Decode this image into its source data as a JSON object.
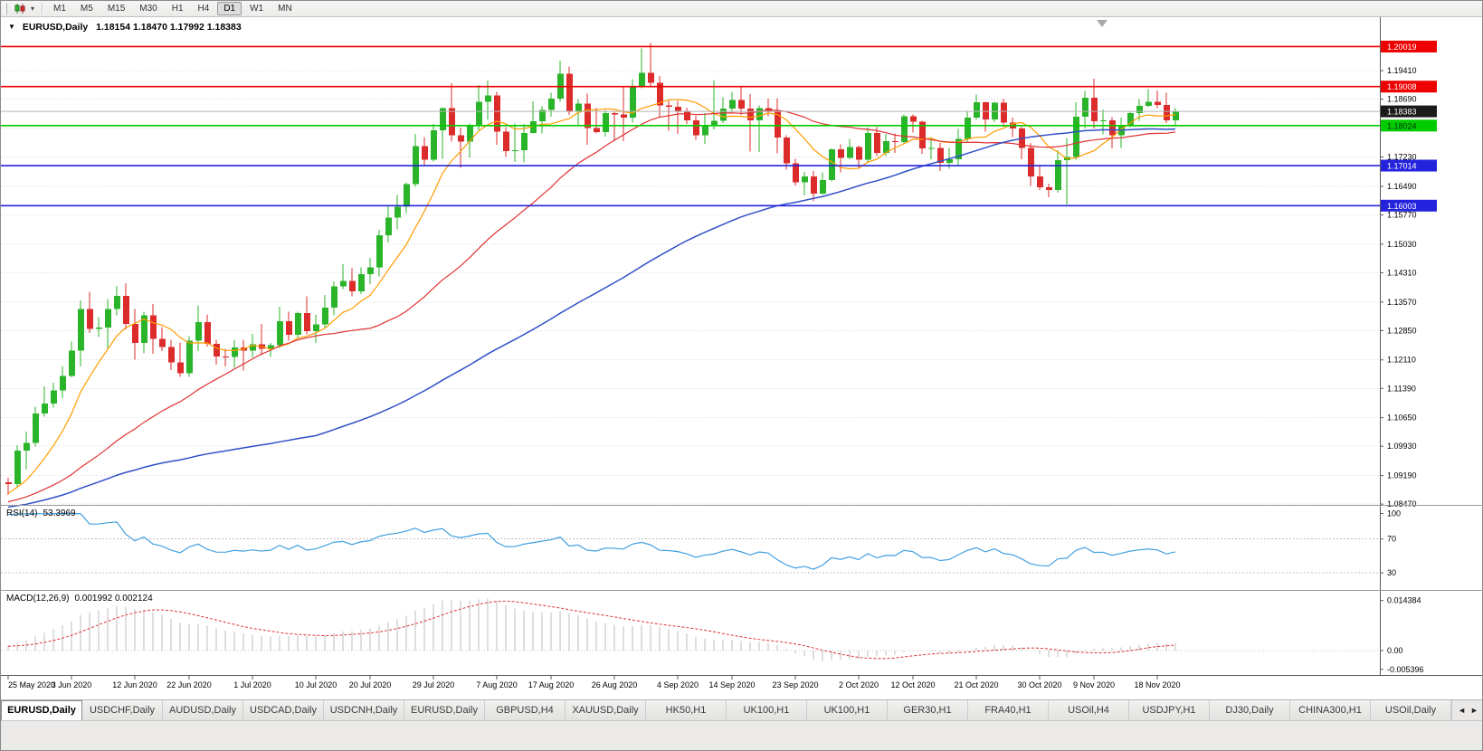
{
  "toolbar": {
    "timeframes": [
      "M1",
      "M5",
      "M15",
      "M30",
      "H1",
      "H4",
      "D1",
      "W1",
      "MN"
    ],
    "active_timeframe": "D1",
    "chart_type_caret_glyph": "▾"
  },
  "chart_data": {
    "type": "candlestick",
    "symbol": "EURUSD",
    "period": "Daily",
    "title_symbol": "EURUSD,Daily",
    "title_ohlc": "1.18154 1.18470 1.17992 1.18383",
    "one_click_glyph": "▼",
    "current_bar": {
      "open": 1.18154,
      "high": 1.1847,
      "low": 1.17992,
      "close": 1.18383
    },
    "y_axis": {
      "ticks": [
        1.1941,
        1.1869,
        1.1723,
        1.1649,
        1.1577,
        1.1503,
        1.1431,
        1.1357,
        1.1285,
        1.1211,
        1.1139,
        1.1065,
        1.0993,
        1.0919,
        1.0847
      ],
      "grid_lines": [
        1.1941,
        1.1869,
        1.1796,
        1.1723,
        1.1649,
        1.1577,
        1.1503,
        1.1431,
        1.1357,
        1.1285,
        1.1211,
        1.1139,
        1.1065,
        1.0993,
        1.0919,
        1.0847
      ],
      "range": [
        1.0845,
        1.2076
      ]
    },
    "x_axis": {
      "labels": [
        {
          "index": 0,
          "label": "25 May 2020"
        },
        {
          "index": 7,
          "label": "3 Jun 2020"
        },
        {
          "index": 14,
          "label": "12 Jun 2020"
        },
        {
          "index": 20,
          "label": "22 Jun 2020"
        },
        {
          "index": 27,
          "label": "1 Jul 2020"
        },
        {
          "index": 34,
          "label": "10 Jul 2020"
        },
        {
          "index": 40,
          "label": "20 Jul 2020"
        },
        {
          "index": 47,
          "label": "29 Jul 2020"
        },
        {
          "index": 54,
          "label": "7 Aug 2020"
        },
        {
          "index": 60,
          "label": "17 Aug 2020"
        },
        {
          "index": 67,
          "label": "26 Aug 2020"
        },
        {
          "index": 74,
          "label": "4 Sep 2020"
        },
        {
          "index": 80,
          "label": "14 Sep 2020"
        },
        {
          "index": 87,
          "label": "23 Sep 2020"
        },
        {
          "index": 94,
          "label": "2 Oct 2020"
        },
        {
          "index": 100,
          "label": "12 Oct 2020"
        },
        {
          "index": 107,
          "label": "21 Oct 2020"
        },
        {
          "index": 114,
          "label": "30 Oct 2020"
        },
        {
          "index": 120,
          "label": "9 Nov 2020"
        },
        {
          "index": 127,
          "label": "18 Nov 2020"
        }
      ]
    },
    "levels": [
      {
        "price": "1.20019",
        "value": 1.20019,
        "color": "#ee0000",
        "text_color": "#ffffff",
        "type": "resistance"
      },
      {
        "price": "1.19008",
        "value": 1.19008,
        "color": "#ee0000",
        "text_color": "#ffffff",
        "type": "resistance"
      },
      {
        "price": "1.18383",
        "value": 1.18383,
        "color": "#1a1a1a",
        "text_color": "#ffffff",
        "type": "current-price"
      },
      {
        "price": "1.18024",
        "value": 1.18024,
        "color": "#00cc00",
        "text_color": "#003300",
        "type": "support"
      },
      {
        "price": "1.17014",
        "value": 1.17014,
        "color": "#2323dd",
        "text_color": "#ffffff",
        "type": "support"
      },
      {
        "price": "1.16003",
        "value": 1.16003,
        "color": "#2323dd",
        "text_color": "#ffffff",
        "type": "support"
      }
    ],
    "moving_averages": [
      {
        "name": "fast",
        "type": "sma",
        "period": 8,
        "color": "#ff9c00",
        "width": 1.2
      },
      {
        "name": "medium",
        "type": "sma",
        "period": 28,
        "color": "#e03232",
        "width": 1.2
      },
      {
        "name": "slow",
        "type": "sma",
        "period": 75,
        "color": "#3050c8",
        "width": 1.5
      }
    ],
    "rsi": {
      "label": "RSI(14)",
      "value_text": "53.3969",
      "period": 14,
      "scale": [
        100,
        70,
        30
      ],
      "dotted_levels": [
        70,
        30
      ],
      "color": "#42a0e0"
    },
    "macd": {
      "label": "MACD(12,26,9)",
      "values_text": "0.001992 0.002124",
      "fast_period": 12,
      "slow_period": 26,
      "signal_period": 9,
      "scale": [
        {
          "label": "0.014384",
          "value": 0.014384
        },
        {
          "label": "0.00",
          "value": 0
        },
        {
          "label": "-0.005396",
          "value": -0.005396
        }
      ]
    },
    "colors": {
      "bull": "#2ab42a",
      "bear": "#dc2b2b",
      "grid": "#d8d8d8",
      "current_price_line": "#b4b4b4",
      "macd_hist": "#bdbdbd",
      "macd_signal": "#e03232",
      "axis_text": "#000000"
    },
    "candles": [
      [
        1.0902,
        1.0913,
        1.087,
        1.0898
      ],
      [
        1.0898,
        1.0996,
        1.0891,
        1.0982
      ],
      [
        1.0982,
        1.103,
        1.0934,
        1.1002
      ],
      [
        1.1002,
        1.1093,
        1.0992,
        1.1076
      ],
      [
        1.1076,
        1.1144,
        1.1068,
        1.1101
      ],
      [
        1.1101,
        1.1153,
        1.109,
        1.1134
      ],
      [
        1.1134,
        1.1195,
        1.1115,
        1.117
      ],
      [
        1.117,
        1.1257,
        1.1167,
        1.1234
      ],
      [
        1.1234,
        1.1361,
        1.1195,
        1.1339
      ],
      [
        1.1339,
        1.1383,
        1.1279,
        1.1289
      ],
      [
        1.1289,
        1.1319,
        1.1269,
        1.1293
      ],
      [
        1.1293,
        1.1365,
        1.124,
        1.134
      ],
      [
        1.134,
        1.1398,
        1.1323,
        1.1373
      ],
      [
        1.1373,
        1.1404,
        1.1288,
        1.1302
      ],
      [
        1.1302,
        1.134,
        1.1212,
        1.1254
      ],
      [
        1.1254,
        1.1333,
        1.1227,
        1.1323
      ],
      [
        1.1323,
        1.1352,
        1.1226,
        1.1264
      ],
      [
        1.1264,
        1.1294,
        1.1233,
        1.1244
      ],
      [
        1.1244,
        1.1262,
        1.1185,
        1.1205
      ],
      [
        1.1205,
        1.1255,
        1.1168,
        1.1177
      ],
      [
        1.1177,
        1.1271,
        1.1168,
        1.126
      ],
      [
        1.126,
        1.1349,
        1.1233,
        1.1306
      ],
      [
        1.1306,
        1.1326,
        1.1245,
        1.1251
      ],
      [
        1.1251,
        1.1262,
        1.1199,
        1.1219
      ],
      [
        1.1219,
        1.1239,
        1.1194,
        1.1218
      ],
      [
        1.1218,
        1.1262,
        1.1191,
        1.1242
      ],
      [
        1.1242,
        1.1262,
        1.1184,
        1.1234
      ],
      [
        1.1234,
        1.1277,
        1.1217,
        1.125
      ],
      [
        1.125,
        1.1302,
        1.1223,
        1.1239
      ],
      [
        1.1239,
        1.1254,
        1.1218,
        1.1248
      ],
      [
        1.1248,
        1.1345,
        1.1241,
        1.1309
      ],
      [
        1.1309,
        1.1333,
        1.1259,
        1.1274
      ],
      [
        1.1274,
        1.1333,
        1.1266,
        1.1329
      ],
      [
        1.1329,
        1.1371,
        1.1275,
        1.1284
      ],
      [
        1.1284,
        1.1325,
        1.1254,
        1.1301
      ],
      [
        1.1301,
        1.1375,
        1.1292,
        1.1343
      ],
      [
        1.1343,
        1.1409,
        1.1323,
        1.1397
      ],
      [
        1.1397,
        1.1452,
        1.139,
        1.141
      ],
      [
        1.141,
        1.1442,
        1.1371,
        1.1384
      ],
      [
        1.1384,
        1.1444,
        1.1377,
        1.1427
      ],
      [
        1.1427,
        1.1468,
        1.1402,
        1.1445
      ],
      [
        1.1445,
        1.1539,
        1.1422,
        1.1526
      ],
      [
        1.1526,
        1.1601,
        1.1507,
        1.157
      ],
      [
        1.157,
        1.1627,
        1.154,
        1.1598
      ],
      [
        1.1598,
        1.1658,
        1.1581,
        1.1655
      ],
      [
        1.1655,
        1.1781,
        1.1648,
        1.1751
      ],
      [
        1.1751,
        1.1773,
        1.17,
        1.1716
      ],
      [
        1.1716,
        1.1806,
        1.1712,
        1.1791
      ],
      [
        1.1791,
        1.1849,
        1.1719,
        1.1846
      ],
      [
        1.1846,
        1.1909,
        1.1762,
        1.1778
      ],
      [
        1.1778,
        1.1797,
        1.1696,
        1.1762
      ],
      [
        1.1762,
        1.1808,
        1.1722,
        1.1803
      ],
      [
        1.1803,
        1.1905,
        1.179,
        1.1863
      ],
      [
        1.1863,
        1.1916,
        1.1817,
        1.1878
      ],
      [
        1.1878,
        1.1888,
        1.1754,
        1.1787
      ],
      [
        1.1787,
        1.1798,
        1.1723,
        1.1738
      ],
      [
        1.1738,
        1.1808,
        1.1711,
        1.174
      ],
      [
        1.174,
        1.1807,
        1.1709,
        1.1784
      ],
      [
        1.1784,
        1.1864,
        1.1782,
        1.1813
      ],
      [
        1.1813,
        1.1851,
        1.1782,
        1.1842
      ],
      [
        1.1842,
        1.1885,
        1.1825,
        1.1871
      ],
      [
        1.1871,
        1.1966,
        1.1863,
        1.1933
      ],
      [
        1.1933,
        1.1952,
        1.1829,
        1.1839
      ],
      [
        1.1839,
        1.1869,
        1.1802,
        1.1858
      ],
      [
        1.1858,
        1.1883,
        1.1754,
        1.1796
      ],
      [
        1.1796,
        1.1848,
        1.1783,
        1.1786
      ],
      [
        1.1786,
        1.1842,
        1.1775,
        1.1834
      ],
      [
        1.1834,
        1.1838,
        1.1763,
        1.183
      ],
      [
        1.183,
        1.1899,
        1.1763,
        1.1823
      ],
      [
        1.1823,
        1.192,
        1.181,
        1.1903
      ],
      [
        1.1903,
        1.1997,
        1.1897,
        1.1935
      ],
      [
        1.1935,
        1.2011,
        1.1901,
        1.1911
      ],
      [
        1.1911,
        1.1928,
        1.1822,
        1.1853
      ],
      [
        1.1853,
        1.1865,
        1.1789,
        1.185
      ],
      [
        1.185,
        1.1865,
        1.1781,
        1.1839
      ],
      [
        1.1839,
        1.1848,
        1.1806,
        1.1816
      ],
      [
        1.1816,
        1.1827,
        1.1766,
        1.1778
      ],
      [
        1.1778,
        1.1834,
        1.1756,
        1.1801
      ],
      [
        1.1801,
        1.1917,
        1.1793,
        1.1814
      ],
      [
        1.1814,
        1.1874,
        1.1809,
        1.1845
      ],
      [
        1.1845,
        1.1888,
        1.1839,
        1.1867
      ],
      [
        1.1867,
        1.19,
        1.1829,
        1.1845
      ],
      [
        1.1845,
        1.1882,
        1.1737,
        1.1816
      ],
      [
        1.1816,
        1.1853,
        1.1736,
        1.1847
      ],
      [
        1.1847,
        1.1871,
        1.1826,
        1.1838
      ],
      [
        1.1838,
        1.1872,
        1.1732,
        1.1772
      ],
      [
        1.1772,
        1.1778,
        1.1691,
        1.1707
      ],
      [
        1.1707,
        1.1719,
        1.1651,
        1.1659
      ],
      [
        1.1659,
        1.1686,
        1.1626,
        1.1674
      ],
      [
        1.1674,
        1.1688,
        1.1611,
        1.1631
      ],
      [
        1.1631,
        1.1684,
        1.1628,
        1.1665
      ],
      [
        1.1665,
        1.1745,
        1.1661,
        1.1742
      ],
      [
        1.1742,
        1.1755,
        1.1684,
        1.1721
      ],
      [
        1.1721,
        1.1769,
        1.1717,
        1.1748
      ],
      [
        1.1748,
        1.1752,
        1.1695,
        1.1716
      ],
      [
        1.1716,
        1.1797,
        1.1708,
        1.1784
      ],
      [
        1.1784,
        1.1798,
        1.1725,
        1.1733
      ],
      [
        1.1733,
        1.1781,
        1.1725,
        1.1763
      ],
      [
        1.1763,
        1.1782,
        1.1733,
        1.1761
      ],
      [
        1.1761,
        1.1831,
        1.1755,
        1.1826
      ],
      [
        1.1826,
        1.183,
        1.1785,
        1.1812
      ],
      [
        1.1812,
        1.1815,
        1.1731,
        1.1745
      ],
      [
        1.1745,
        1.1773,
        1.1718,
        1.1746
      ],
      [
        1.1746,
        1.1758,
        1.1688,
        1.1708
      ],
      [
        1.1708,
        1.1746,
        1.1694,
        1.1718
      ],
      [
        1.1718,
        1.1794,
        1.1703,
        1.1769
      ],
      [
        1.1769,
        1.184,
        1.176,
        1.1822
      ],
      [
        1.1822,
        1.1881,
        1.1817,
        1.1861
      ],
      [
        1.1861,
        1.1863,
        1.1787,
        1.1818
      ],
      [
        1.1818,
        1.1863,
        1.1811,
        1.186
      ],
      [
        1.186,
        1.187,
        1.18,
        1.181
      ],
      [
        1.181,
        1.1823,
        1.1773,
        1.1795
      ],
      [
        1.1795,
        1.18,
        1.1718,
        1.1746
      ],
      [
        1.1746,
        1.1759,
        1.165,
        1.1674
      ],
      [
        1.1674,
        1.1704,
        1.164,
        1.1647
      ],
      [
        1.1647,
        1.1656,
        1.1622,
        1.164
      ],
      [
        1.164,
        1.174,
        1.1633,
        1.1715
      ],
      [
        1.1715,
        1.1771,
        1.1603,
        1.1723
      ],
      [
        1.1723,
        1.1861,
        1.1716,
        1.1825
      ],
      [
        1.1825,
        1.189,
        1.1795,
        1.1873
      ],
      [
        1.1873,
        1.1921,
        1.1795,
        1.1813
      ],
      [
        1.1813,
        1.1843,
        1.178,
        1.1816
      ],
      [
        1.1816,
        1.1824,
        1.1745,
        1.1778
      ],
      [
        1.1778,
        1.1823,
        1.1746,
        1.1804
      ],
      [
        1.1804,
        1.1839,
        1.1799,
        1.1834
      ],
      [
        1.1834,
        1.1869,
        1.1814,
        1.1852
      ],
      [
        1.1852,
        1.1894,
        1.185,
        1.1863
      ],
      [
        1.1863,
        1.1891,
        1.1846,
        1.1854
      ],
      [
        1.1854,
        1.1885,
        1.1809,
        1.18154
      ],
      [
        1.18154,
        1.1847,
        1.17992,
        1.18383
      ]
    ]
  },
  "tabbar": {
    "tabs": [
      "EURUSD,Daily",
      "USDCHF,Daily",
      "AUDUSD,Daily",
      "USDCAD,Daily",
      "USDCNH,Daily",
      "EURUSD,Daily",
      "GBPUSD,H4",
      "XAUUSD,Daily",
      "HK50,H1",
      "UK100,H1",
      "UK100,H1",
      "GER30,H1",
      "FRA40,H1",
      "USOil,H4",
      "USDJPY,H1",
      "DJ30,Daily",
      "CHINA300,H1",
      "USOil,Daily"
    ],
    "active_index": 0,
    "scroll_left_glyph": "◄",
    "scroll_right_glyph": "►"
  }
}
